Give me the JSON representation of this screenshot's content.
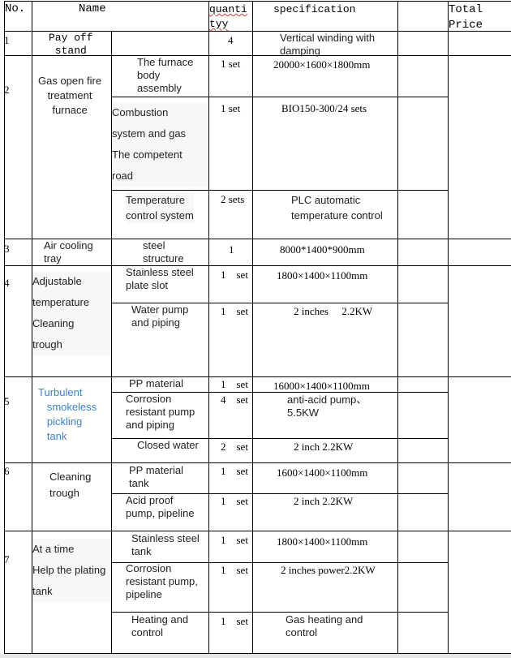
{
  "header": {
    "no": "No.",
    "name": "Name",
    "quantity_line1": "quanti",
    "quantity_line2": "tyy",
    "specification": "specification",
    "total_price": "Total\nPrice"
  },
  "rows": [
    {
      "no": "1",
      "name": "Pay off\nstand",
      "items": [
        {
          "part": "",
          "qty": "4",
          "spec": "Vertical winding with\ndamping"
        }
      ]
    },
    {
      "no": "2",
      "name": "Gas open fire\ntreatment\nfurnace",
      "items": [
        {
          "part": "The furnace\nbody\nassembly",
          "qty": "1 set",
          "spec": "20000×1600×1800mm"
        },
        {
          "part": "Combustion\nsystem and gas\nThe        competent\nroad",
          "qty": "1 set",
          "spec": "BIO150-300/24 sets"
        },
        {
          "part": "Temperature\ncontrol system",
          "qty": "2 sets",
          "spec": "PLC automatic\ntemperature control"
        }
      ]
    },
    {
      "no": "3",
      "name": "Air cooling\ntray",
      "items": [
        {
          "part": "steel\nstructure",
          "qty": "1",
          "spec": "8000*1400*900mm"
        }
      ]
    },
    {
      "no": "4",
      "name": "Adjustable\ntemperature\nCleaning\ntrough",
      "items": [
        {
          "part": "Stainless steel\nplate slot",
          "qty": "1    set",
          "spec": "1800×1400×1100mm"
        },
        {
          "part": "Water pump\nand piping",
          "qty": "1    set",
          "spec": "2 inches     2.2KW"
        }
      ]
    },
    {
      "no": "5",
      "name": "Turbulent\n   smokeless\n   pickling\n   tank",
      "items": [
        {
          "part": "PP material",
          "qty": "1    set",
          "spec": "16000×1400×1100mm"
        },
        {
          "part": "Corrosion\nresistant pump\nand piping",
          "qty": "4    set",
          "spec": "anti-acid pump、\n5.5KW"
        },
        {
          "part": "Closed water",
          "qty": "2    set",
          "spec": "2 inch 2.2KW"
        }
      ]
    },
    {
      "no": "6",
      "name": "Cleaning\ntrough",
      "items": [
        {
          "part": "PP material\ntank",
          "qty": "1    set",
          "spec": "1600×1400×1100mm"
        },
        {
          "part": "Acid proof\npump, pipeline",
          "qty": "1    set",
          "spec": "2 inch 2.2KW"
        }
      ]
    },
    {
      "no": "7",
      "name": "At a time\nHelp the plating\ntank",
      "items": [
        {
          "part": "Stainless steel\ntank",
          "qty": "1    set",
          "spec": "1800×1400×1100mm"
        },
        {
          "part": "Corrosion\nresistant pump,\npipeline",
          "qty": "1    set",
          "spec": "2 inches power2.2KW"
        },
        {
          "part": "Heating and\ncontrol",
          "qty": "1    set",
          "spec": "Gas heating and\ncontrol"
        }
      ]
    }
  ],
  "colors": {
    "link_text": "#3b82d8",
    "border": "#000000"
  }
}
